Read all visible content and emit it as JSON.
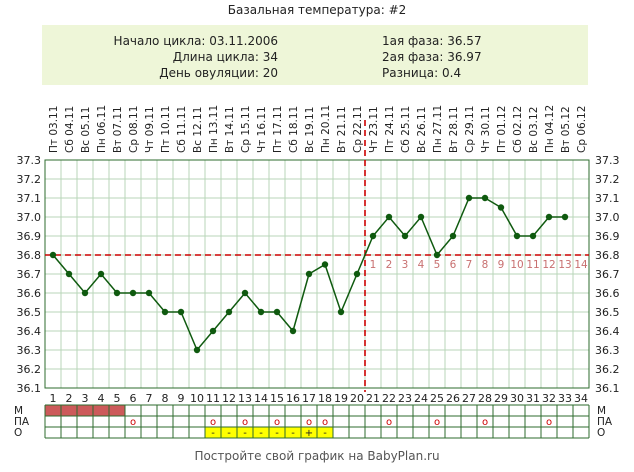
{
  "title": "Базальная температура: #2",
  "summary": {
    "cycle_start": "Начало цикла: 03.11.2006",
    "cycle_length": "Длина цикла: 34",
    "ovulation_day": "День овуляции: 20",
    "phase1": "1ая фаза: 36.57",
    "phase2": "2ая фаза: 36.97",
    "difference": "Разница: 0.4"
  },
  "footer": "Постройте свой график на BabyPlan.ru",
  "colors": {
    "line": "#0f5a0f",
    "marker": "#0f5a0f",
    "coverline": "#cc0000",
    "grid": "#b9d6b9",
    "frame": "#2e6b2e",
    "menstruation": "#cc5a5a",
    "marker_box": "#ffff00",
    "phase_label": "#c87070"
  },
  "chart_data": {
    "type": "line",
    "title": "Базальная температура: #2",
    "dates": [
      "Пт 03.11",
      "Сб 04.11",
      "Вс 05.11",
      "Пн 06.11",
      "Вт 07.11",
      "Ср 08.11",
      "Чт 09.11",
      "Пт 10.11",
      "Сб 11.11",
      "Вс 12.11",
      "Пн 13.11",
      "Вт 14.11",
      "Ср 15.11",
      "Чт 16.11",
      "Пт 17.11",
      "Сб 18.11",
      "Вс 19.11",
      "Пн 20.11",
      "Вт 21.11",
      "Ср 22.11",
      "Чт 23.11",
      "Пт 24.11",
      "Сб 25.11",
      "Вс 26.11",
      "Пн 27.11",
      "Вт 28.11",
      "Ср 29.11",
      "Чт 30.11",
      "Пт 01.12",
      "Сб 02.12",
      "Вс 03.12",
      "Пн 04.12",
      "Вт 05.12",
      "Ср 06.12"
    ],
    "days": [
      "1",
      "2",
      "3",
      "4",
      "5",
      "6",
      "7",
      "8",
      "9",
      "10",
      "11",
      "12",
      "13",
      "14",
      "15",
      "16",
      "17",
      "18",
      "19",
      "20",
      "21",
      "22",
      "23",
      "24",
      "25",
      "26",
      "27",
      "28",
      "29",
      "30",
      "31",
      "32",
      "33",
      "34"
    ],
    "series": [
      {
        "values": [
          36.8,
          36.7,
          36.6,
          36.7,
          36.6,
          36.6,
          36.6,
          36.5,
          36.5,
          36.3,
          36.4,
          36.5,
          36.6,
          36.5,
          36.5,
          36.4,
          36.7,
          36.75,
          36.5,
          36.7,
          36.9,
          37.0,
          36.9,
          37.0,
          36.8,
          36.9,
          37.1,
          37.1,
          37.05,
          36.9,
          36.9,
          37.0,
          37.0,
          null
        ]
      }
    ],
    "y_ticks": [
      "37.3",
      "37.2",
      "37.1",
      "37.0",
      "36.9",
      "36.8",
      "36.7",
      "36.6",
      "36.5",
      "36.4",
      "36.3",
      "36.2",
      "36.1"
    ],
    "ylim": [
      36.1,
      37.3
    ],
    "coverline": 36.8,
    "ovulation_day": 20,
    "phase2_labels": [
      "1",
      "2",
      "3",
      "4",
      "5",
      "6",
      "7",
      "8",
      "9",
      "10",
      "11",
      "12",
      "13",
      "14"
    ],
    "phase2_start_day": 21,
    "row_labels": [
      "М",
      "ПА",
      "О"
    ],
    "menstruation_days": [
      1,
      2,
      3,
      4,
      5
    ],
    "pa_days": [
      6,
      11,
      13,
      15,
      17,
      18,
      22,
      25,
      28,
      32
    ],
    "o_marks": [
      {
        "day": 11,
        "text": "-"
      },
      {
        "day": 12,
        "text": "-"
      },
      {
        "day": 13,
        "text": "-"
      },
      {
        "day": 14,
        "text": "-"
      },
      {
        "day": 15,
        "text": "-"
      },
      {
        "day": 16,
        "text": "-"
      },
      {
        "day": 17,
        "text": "+"
      },
      {
        "day": 18,
        "text": "-"
      }
    ],
    "pa_symbol": "о",
    "grid": true
  }
}
